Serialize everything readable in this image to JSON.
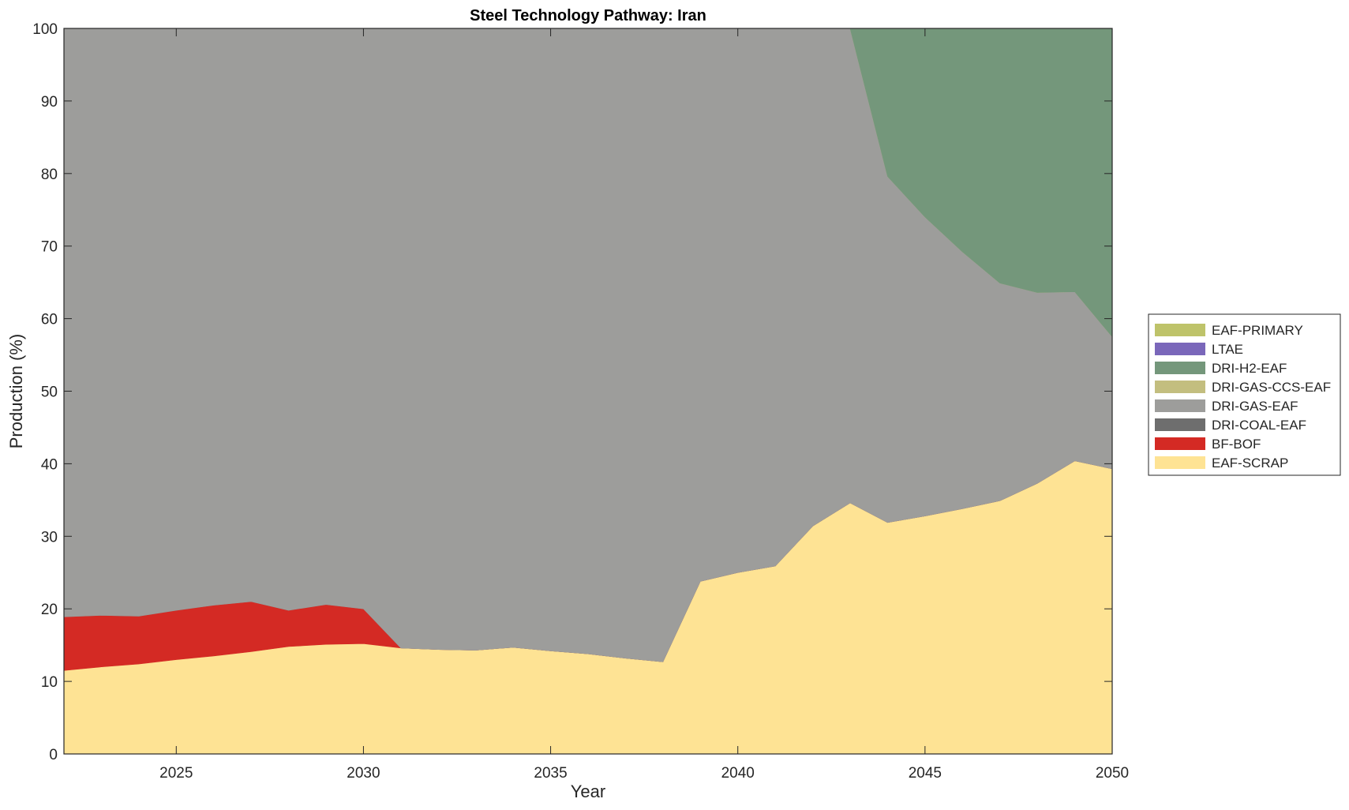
{
  "chart_data": {
    "type": "area",
    "stacked": true,
    "title": "Steel Technology Pathway: Iran",
    "xlabel": "Year",
    "ylabel": "Production (%)",
    "xlim": [
      2022,
      2050
    ],
    "ylim": [
      0,
      100
    ],
    "xticks": [
      2025,
      2030,
      2035,
      2040,
      2045,
      2050
    ],
    "yticks": [
      0,
      10,
      20,
      30,
      40,
      50,
      60,
      70,
      80,
      90,
      100
    ],
    "grid": false,
    "legend_position": "right",
    "x": [
      2022,
      2023,
      2024,
      2025,
      2026,
      2027,
      2028,
      2029,
      2030,
      2031,
      2032,
      2033,
      2034,
      2035,
      2036,
      2037,
      2038,
      2039,
      2040,
      2041,
      2042,
      2043,
      2044,
      2045,
      2046,
      2047,
      2048,
      2049,
      2050
    ],
    "series": [
      {
        "name": "EAF-SCRAP",
        "color": "#FEE394",
        "values": [
          11.5,
          12.0,
          12.4,
          13.0,
          13.5,
          14.1,
          14.8,
          15.1,
          15.2,
          14.6,
          14.4,
          14.3,
          14.7,
          14.2,
          13.8,
          13.2,
          12.7,
          23.8,
          25.0,
          25.9,
          31.4,
          34.6,
          31.9,
          32.8,
          33.8,
          34.9,
          37.3,
          40.4,
          39.3
        ]
      },
      {
        "name": "BF-BOF",
        "color": "#D42A24",
        "values": [
          7.4,
          7.1,
          6.6,
          6.8,
          7.0,
          6.9,
          5.0,
          5.5,
          4.8,
          0,
          0,
          0,
          0,
          0,
          0,
          0,
          0,
          0,
          0,
          0,
          0,
          0,
          0,
          0,
          0,
          0,
          0,
          0,
          0
        ]
      },
      {
        "name": "DRI-COAL-EAF",
        "color": "#6E6E6E",
        "values": [
          0,
          0,
          0,
          0,
          0,
          0,
          0,
          0,
          0,
          0,
          0,
          0,
          0,
          0,
          0,
          0,
          0,
          0,
          0,
          0,
          0,
          0,
          0,
          0,
          0,
          0,
          0,
          0,
          0
        ]
      },
      {
        "name": "DRI-GAS-EAF",
        "color": "#9D9D9B",
        "values": [
          81.1,
          80.9,
          81.0,
          80.2,
          79.5,
          79.0,
          80.2,
          79.4,
          80.0,
          85.4,
          85.6,
          85.7,
          85.3,
          85.8,
          86.2,
          86.8,
          87.3,
          76.2,
          75.0,
          74.1,
          68.6,
          65.4,
          47.7,
          41.2,
          35.4,
          30.0,
          26.3,
          23.3,
          18.2
        ]
      },
      {
        "name": "DRI-GAS-CCS-EAF",
        "color": "#C3BE7F",
        "values": [
          0,
          0,
          0,
          0,
          0,
          0,
          0,
          0,
          0,
          0,
          0,
          0,
          0,
          0,
          0,
          0,
          0,
          0,
          0,
          0,
          0,
          0,
          0,
          0,
          0,
          0,
          0,
          0,
          0
        ]
      },
      {
        "name": "DRI-H2-EAF",
        "color": "#74977B",
        "values": [
          0,
          0,
          0,
          0,
          0,
          0,
          0,
          0,
          0,
          0,
          0,
          0,
          0,
          0,
          0,
          0,
          0,
          0,
          0,
          0,
          0,
          0,
          20.4,
          26.0,
          30.8,
          35.1,
          36.4,
          36.3,
          42.5
        ]
      },
      {
        "name": "LTAE",
        "color": "#7A67BA",
        "values": [
          0,
          0,
          0,
          0,
          0,
          0,
          0,
          0,
          0,
          0,
          0,
          0,
          0,
          0,
          0,
          0,
          0,
          0,
          0,
          0,
          0,
          0,
          0,
          0,
          0,
          0,
          0,
          0,
          0
        ]
      },
      {
        "name": "EAF-PRIMARY",
        "color": "#BEC36A",
        "values": [
          0,
          0,
          0,
          0,
          0,
          0,
          0,
          0,
          0,
          0,
          0,
          0,
          0,
          0,
          0,
          0,
          0,
          0,
          0,
          0,
          0,
          0,
          0,
          0,
          0,
          0,
          0,
          0,
          0
        ]
      }
    ],
    "legend_order": [
      "EAF-PRIMARY",
      "LTAE",
      "DRI-H2-EAF",
      "DRI-GAS-CCS-EAF",
      "DRI-GAS-EAF",
      "DRI-COAL-EAF",
      "BF-BOF",
      "EAF-SCRAP"
    ]
  }
}
